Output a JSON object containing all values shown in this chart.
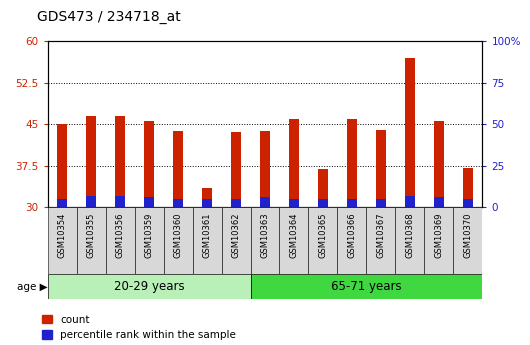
{
  "title": "GDS473 / 234718_at",
  "categories": [
    "GSM10354",
    "GSM10355",
    "GSM10356",
    "GSM10359",
    "GSM10360",
    "GSM10361",
    "GSM10362",
    "GSM10363",
    "GSM10364",
    "GSM10365",
    "GSM10366",
    "GSM10367",
    "GSM10368",
    "GSM10369",
    "GSM10370"
  ],
  "count_values": [
    45.0,
    46.5,
    46.5,
    45.5,
    43.8,
    33.5,
    43.5,
    43.8,
    46.0,
    36.8,
    46.0,
    44.0,
    57.0,
    45.5,
    37.0
  ],
  "percentile_values": [
    1.5,
    2.0,
    2.0,
    1.8,
    1.5,
    1.5,
    1.5,
    1.8,
    1.5,
    1.5,
    1.5,
    1.5,
    2.0,
    1.8,
    1.5
  ],
  "base_value": 30,
  "ylim_left": [
    30,
    60
  ],
  "ylim_right": [
    0,
    100
  ],
  "yticks_left": [
    30,
    37.5,
    45,
    52.5,
    60
  ],
  "yticks_right": [
    0,
    25,
    50,
    75,
    100
  ],
  "ytick_labels_left": [
    "30",
    "37.5",
    "45",
    "52.5",
    "60"
  ],
  "ytick_labels_right": [
    "0",
    "25",
    "50",
    "75",
    "100%"
  ],
  "group1_label": "20-29 years",
  "group2_label": "65-71 years",
  "group1_indices": [
    0,
    1,
    2,
    3,
    4,
    5,
    6
  ],
  "group2_indices": [
    7,
    8,
    9,
    10,
    11,
    12,
    13,
    14
  ],
  "group1_color": "#b8f0b8",
  "group2_color": "#40d840",
  "bar_color_red": "#cc2200",
  "bar_color_blue": "#2222cc",
  "axis_bg_color": "#d8d8d8",
  "left_axis_color": "#cc2200",
  "right_axis_color": "#2222cc",
  "legend_red_label": "count",
  "legend_blue_label": "percentile rank within the sample",
  "age_label": "age",
  "bar_width": 0.35
}
